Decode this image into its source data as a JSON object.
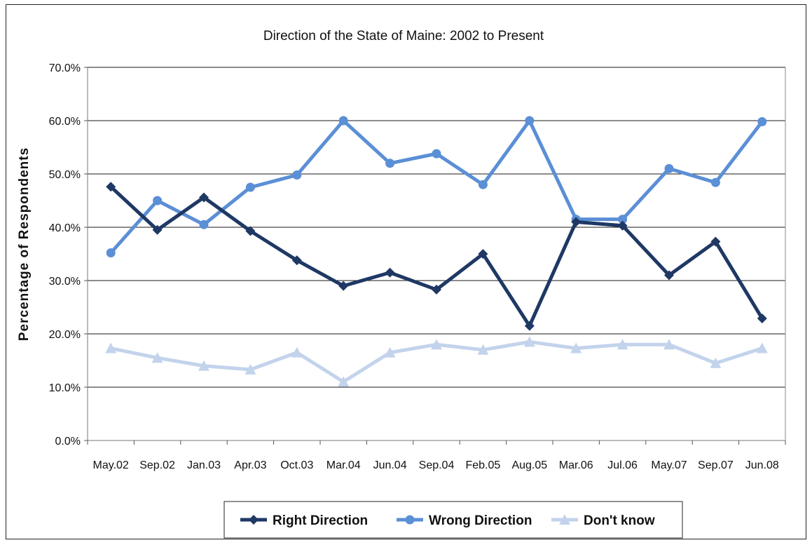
{
  "chart_data": {
    "type": "line",
    "title": "Direction of the State of Maine: 2002 to Present",
    "xlabel": "",
    "ylabel": "Percentage of Respondents",
    "ylim": [
      0,
      70
    ],
    "yticks": [
      "0.0%",
      "10.0%",
      "20.0%",
      "30.0%",
      "40.0%",
      "50.0%",
      "60.0%",
      "70.0%"
    ],
    "grid": true,
    "legend_position": "bottom",
    "categories": [
      "May.02",
      "Sep.02",
      "Jan.03",
      "Apr.03",
      "Oct.03",
      "Mar.04",
      "Jun.04",
      "Sep.04",
      "Feb.05",
      "Aug.05",
      "Mar.06",
      "Jul.06",
      "May.07",
      "Sep.07",
      "Jun.08"
    ],
    "series": [
      {
        "name": "Right Direction",
        "color": "#1f3864",
        "marker": "diamond",
        "values": [
          47.6,
          39.5,
          45.6,
          39.3,
          33.8,
          29.0,
          31.5,
          28.3,
          35.0,
          21.5,
          41.0,
          40.3,
          31.0,
          37.3,
          22.9
        ]
      },
      {
        "name": "Wrong Direction",
        "color": "#5b8fd6",
        "marker": "circle",
        "values": [
          35.2,
          45.0,
          40.5,
          47.5,
          49.8,
          60.0,
          52.0,
          53.8,
          48.0,
          60.0,
          41.5,
          41.5,
          51.0,
          48.4,
          59.8
        ]
      },
      {
        "name": "Don't know",
        "color": "#c3d3ec",
        "marker": "triangle",
        "values": [
          17.3,
          15.5,
          14.0,
          13.3,
          16.5,
          11.0,
          16.5,
          18.0,
          17.0,
          18.5,
          17.3,
          18.0,
          18.0,
          14.5,
          17.3
        ]
      }
    ]
  }
}
